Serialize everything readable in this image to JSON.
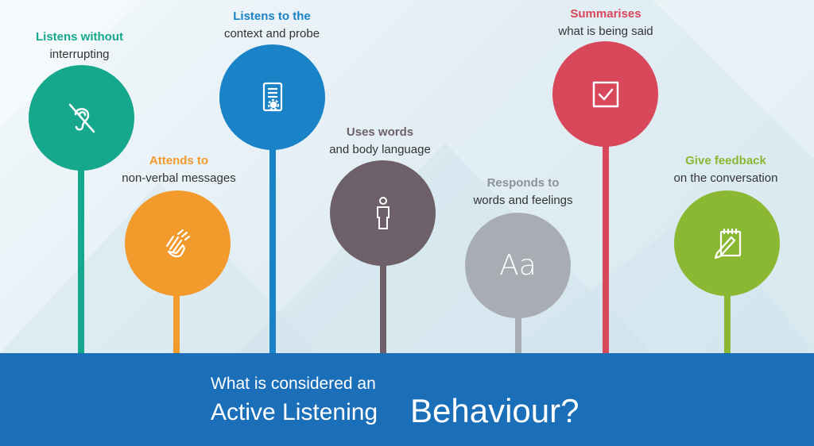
{
  "colors": {
    "teal": "#16a88c",
    "orange": "#f29a2b",
    "blue": "#1a82c6",
    "grey_purple": "#6e6068",
    "light_grey": "#a7adb2",
    "red": "#d8475a",
    "green": "#8ab833",
    "banner": "#1a6fb8"
  },
  "items": [
    {
      "title": "Listens without",
      "subtitle": "interrupting",
      "icon": "no-hearing-icon"
    },
    {
      "title": "Attends to",
      "subtitle": "non-verbal messages",
      "icon": "hands-icon"
    },
    {
      "title": "Listens to the",
      "subtitle": "context and probe",
      "icon": "document-gear-icon"
    },
    {
      "title": "Uses words",
      "subtitle": "and body language",
      "icon": "person-icon"
    },
    {
      "title": "Responds to",
      "subtitle": "words and feelings",
      "icon": "text-aa-icon"
    },
    {
      "title": "Summarises",
      "subtitle": "what is being said",
      "icon": "checkbox-icon"
    },
    {
      "title": "Give feedback",
      "subtitle": "on the conversation",
      "icon": "notepad-pencil-icon"
    }
  ],
  "banner": {
    "line1": "What is considered an",
    "line2": "Active Listening",
    "line3": "Behaviour?"
  },
  "icon_text": {
    "aa": "Aa"
  }
}
